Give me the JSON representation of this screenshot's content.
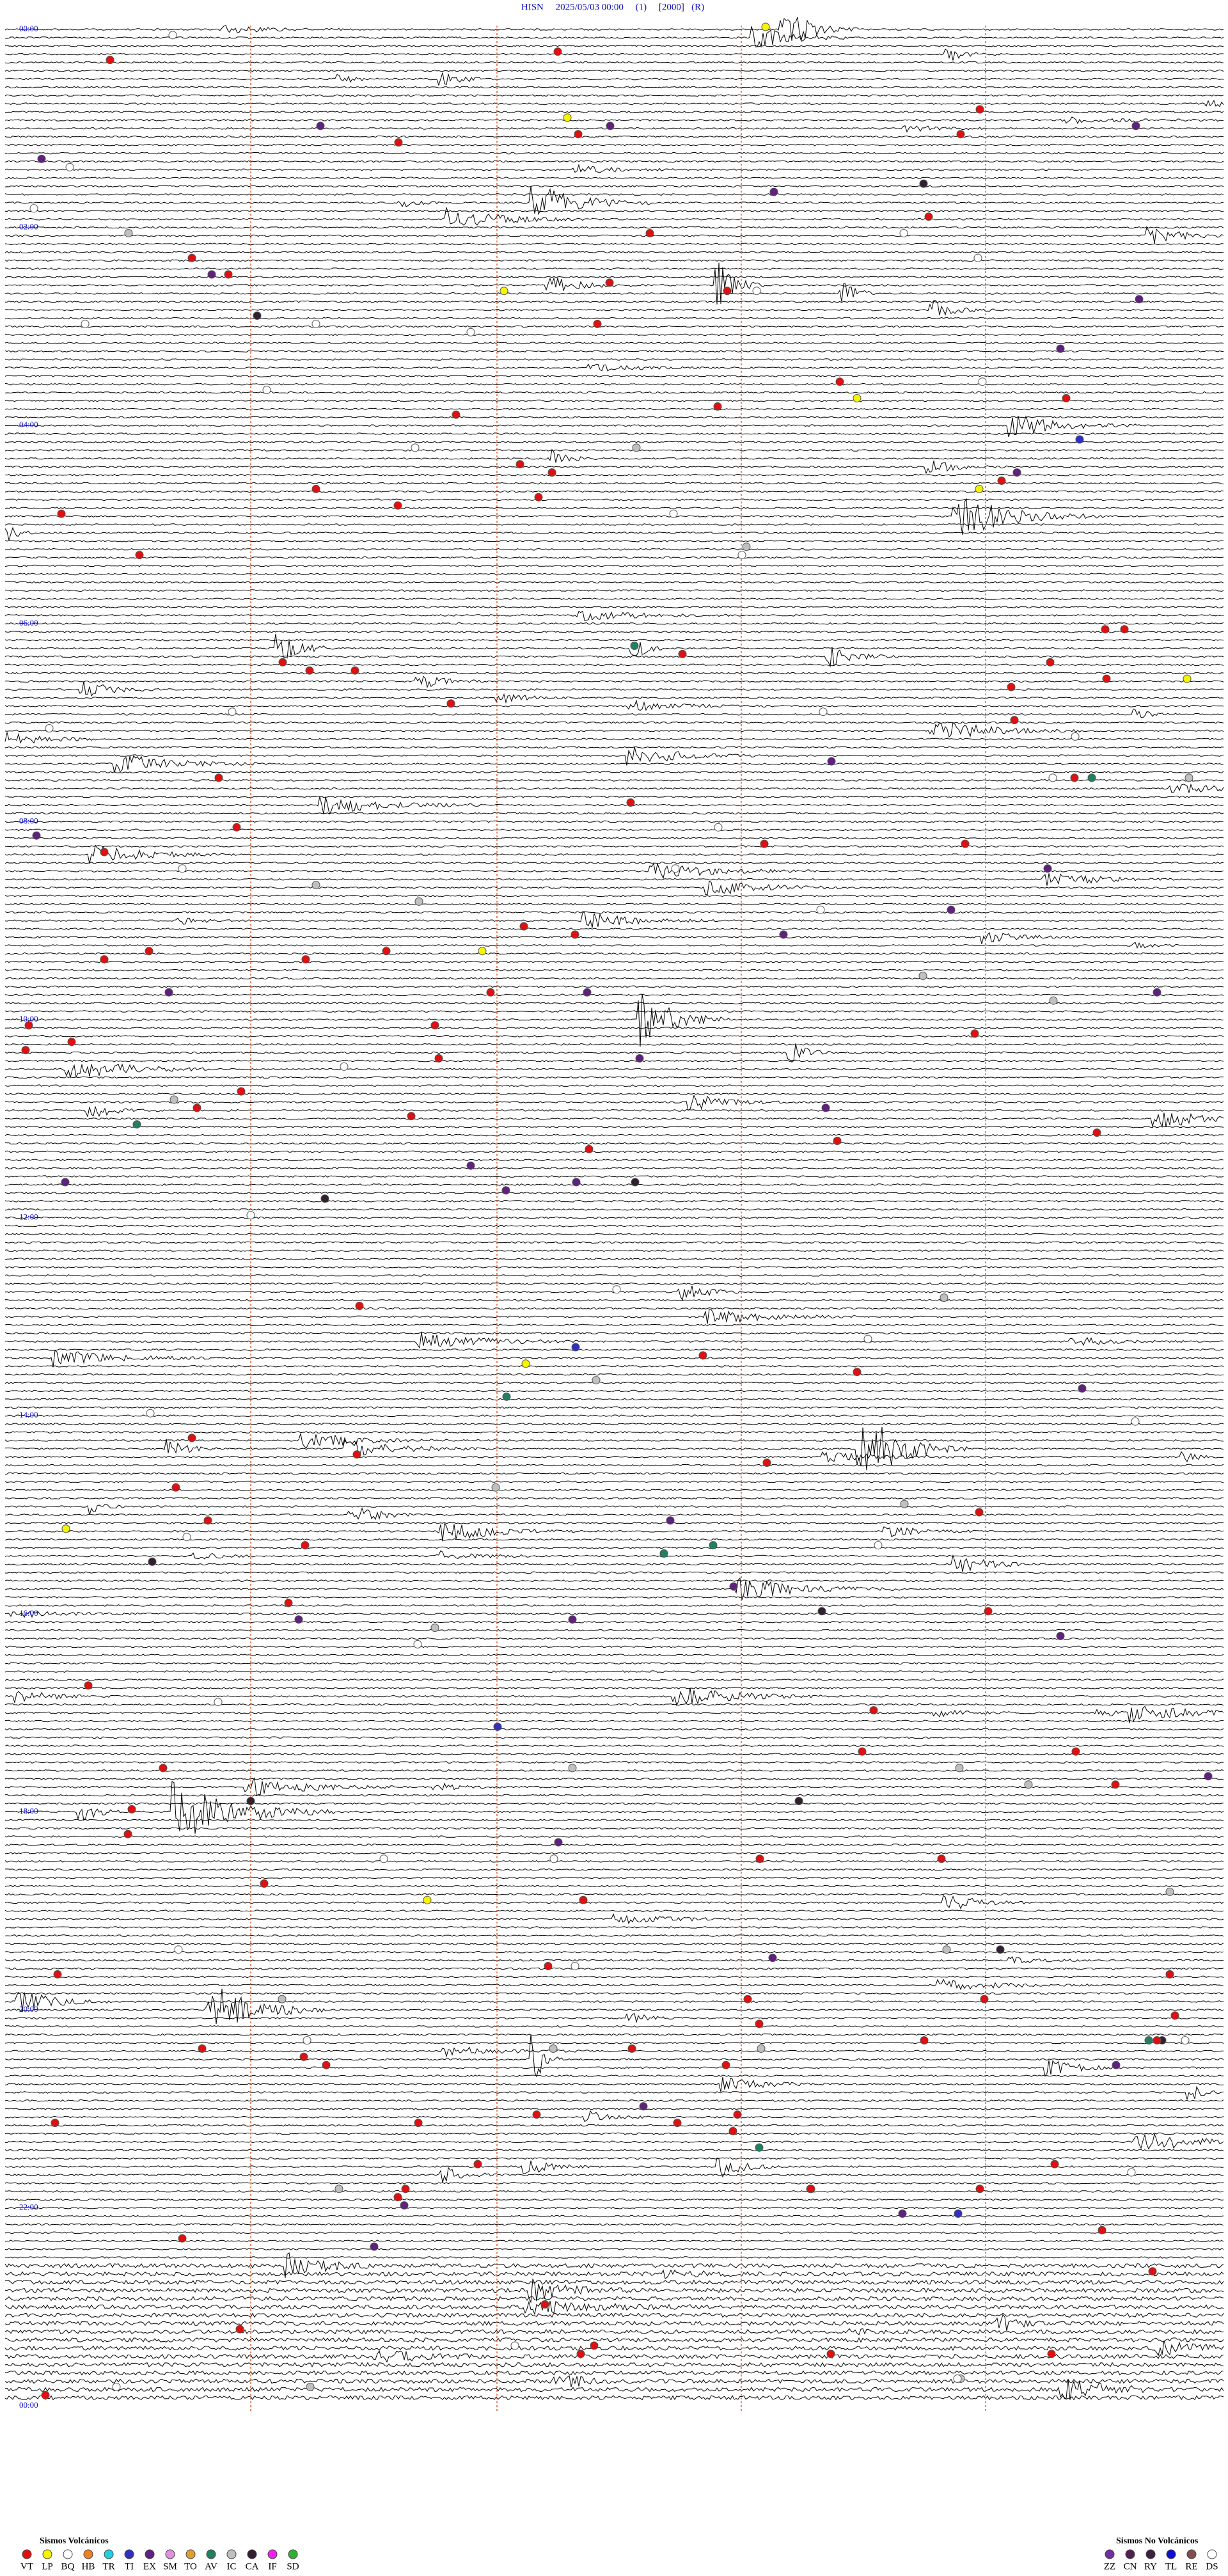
{
  "header": {
    "title": "HISN     2025/05/03 00:00     (1)     [2000]   (R)"
  },
  "time_labels": [
    "00:00",
    "02:00",
    "04:00",
    "06:00",
    "08:00",
    "10:00",
    "12:00",
    "14:00",
    "16:00",
    "18:00",
    "20:00",
    "22:00",
    "00:00"
  ],
  "legend_volcanic": {
    "title": "Sismos Volcánicos",
    "items": [
      {
        "code": "VT",
        "color": "#e01010"
      },
      {
        "code": "LP",
        "color": "#f5f500"
      },
      {
        "code": "BQ",
        "color": "#ffffff"
      },
      {
        "code": "HB",
        "color": "#f08020"
      },
      {
        "code": "TR",
        "color": "#20d0e0"
      },
      {
        "code": "TI",
        "color": "#3030c0"
      },
      {
        "code": "EX",
        "color": "#602080"
      },
      {
        "code": "SM",
        "color": "#e090e0"
      },
      {
        "code": "TO",
        "color": "#e0a030"
      },
      {
        "code": "AV",
        "color": "#208060"
      },
      {
        "code": "IC",
        "color": "#c0c0c0"
      },
      {
        "code": "CA",
        "color": "#302030"
      },
      {
        "code": "IF",
        "color": "#f020f0"
      },
      {
        "code": "SD",
        "color": "#30b030"
      }
    ]
  },
  "legend_non_volcanic": {
    "title": "Sismos No Volcánicos",
    "items": [
      {
        "code": "ZZ",
        "color": "#7030a0"
      },
      {
        "code": "CN",
        "color": "#502050"
      },
      {
        "code": "RY",
        "color": "#402040"
      },
      {
        "code": "TL",
        "color": "#1010d0"
      },
      {
        "code": "RE",
        "color": "#805050"
      },
      {
        "code": "DS",
        "color": "#ffffff"
      }
    ]
  }
}
